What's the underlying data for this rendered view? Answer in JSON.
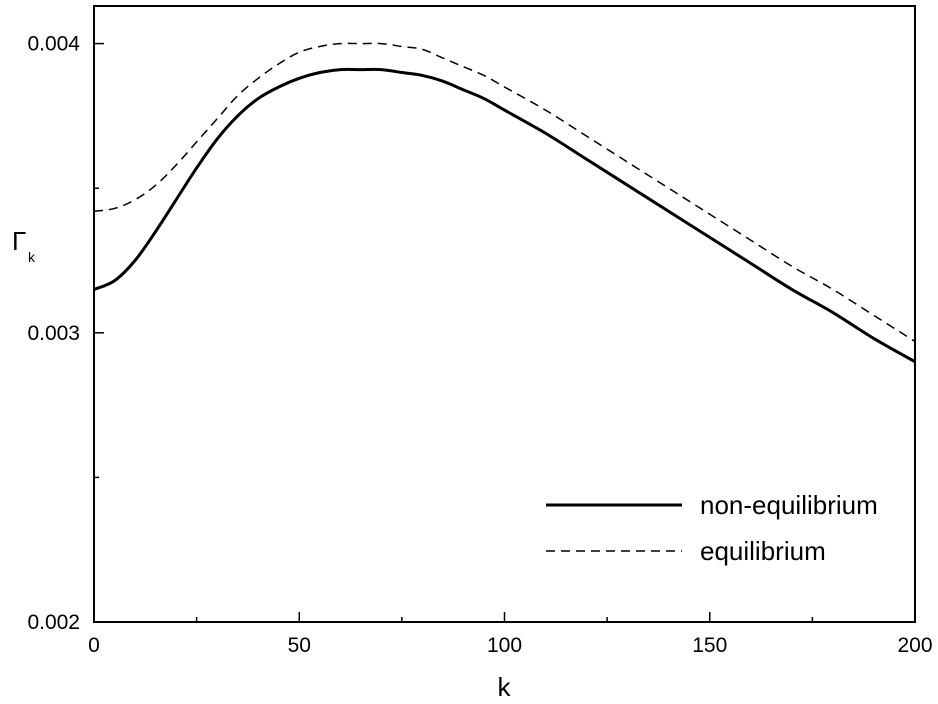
{
  "chart_data": {
    "type": "line",
    "xlabel": "k",
    "ylabel": "Γ",
    "ylabel_subscript": "k",
    "xlim": [
      0,
      200
    ],
    "ylim": [
      0.002,
      0.00413
    ],
    "x_ticks": [
      0,
      50,
      100,
      150,
      200
    ],
    "x_tick_labels": [
      "0",
      "50",
      "100",
      "150",
      "200"
    ],
    "y_ticks": [
      0.002,
      0.003,
      0.004
    ],
    "y_tick_labels": [
      "0.002",
      "0.003",
      "0.004"
    ],
    "grid": false,
    "legend_position": "lower-right",
    "series": [
      {
        "name": "non-equilibrium",
        "style": "solid",
        "color": "#000000",
        "x": [
          0,
          5,
          10,
          15,
          20,
          25,
          30,
          35,
          40,
          45,
          50,
          55,
          60,
          65,
          70,
          75,
          80,
          85,
          90,
          95,
          100,
          110,
          120,
          130,
          140,
          150,
          160,
          170,
          180,
          190,
          200
        ],
        "y": [
          0.00315,
          0.00318,
          0.00325,
          0.00335,
          0.00346,
          0.00357,
          0.00367,
          0.00375,
          0.00381,
          0.00385,
          0.00388,
          0.0039,
          0.00391,
          0.00391,
          0.00391,
          0.0039,
          0.00389,
          0.00387,
          0.00384,
          0.00381,
          0.00377,
          0.00369,
          0.0036,
          0.00351,
          0.00342,
          0.00333,
          0.00324,
          0.00315,
          0.00307,
          0.00298,
          0.0029
        ]
      },
      {
        "name": "equilibrium",
        "style": "dashed",
        "color": "#000000",
        "x": [
          0,
          5,
          10,
          15,
          20,
          25,
          30,
          35,
          40,
          45,
          50,
          55,
          60,
          65,
          70,
          75,
          80,
          85,
          90,
          95,
          100,
          110,
          120,
          130,
          140,
          150,
          160,
          170,
          180,
          190,
          200
        ],
        "y": [
          0.00342,
          0.00343,
          0.00346,
          0.00351,
          0.00358,
          0.00366,
          0.00374,
          0.00382,
          0.00388,
          0.00393,
          0.00397,
          0.00399,
          0.004,
          0.004,
          0.004,
          0.00399,
          0.00398,
          0.00395,
          0.00392,
          0.00389,
          0.00385,
          0.00377,
          0.00368,
          0.00359,
          0.0035,
          0.00341,
          0.00332,
          0.00323,
          0.00315,
          0.00306,
          0.00297
        ]
      }
    ]
  }
}
